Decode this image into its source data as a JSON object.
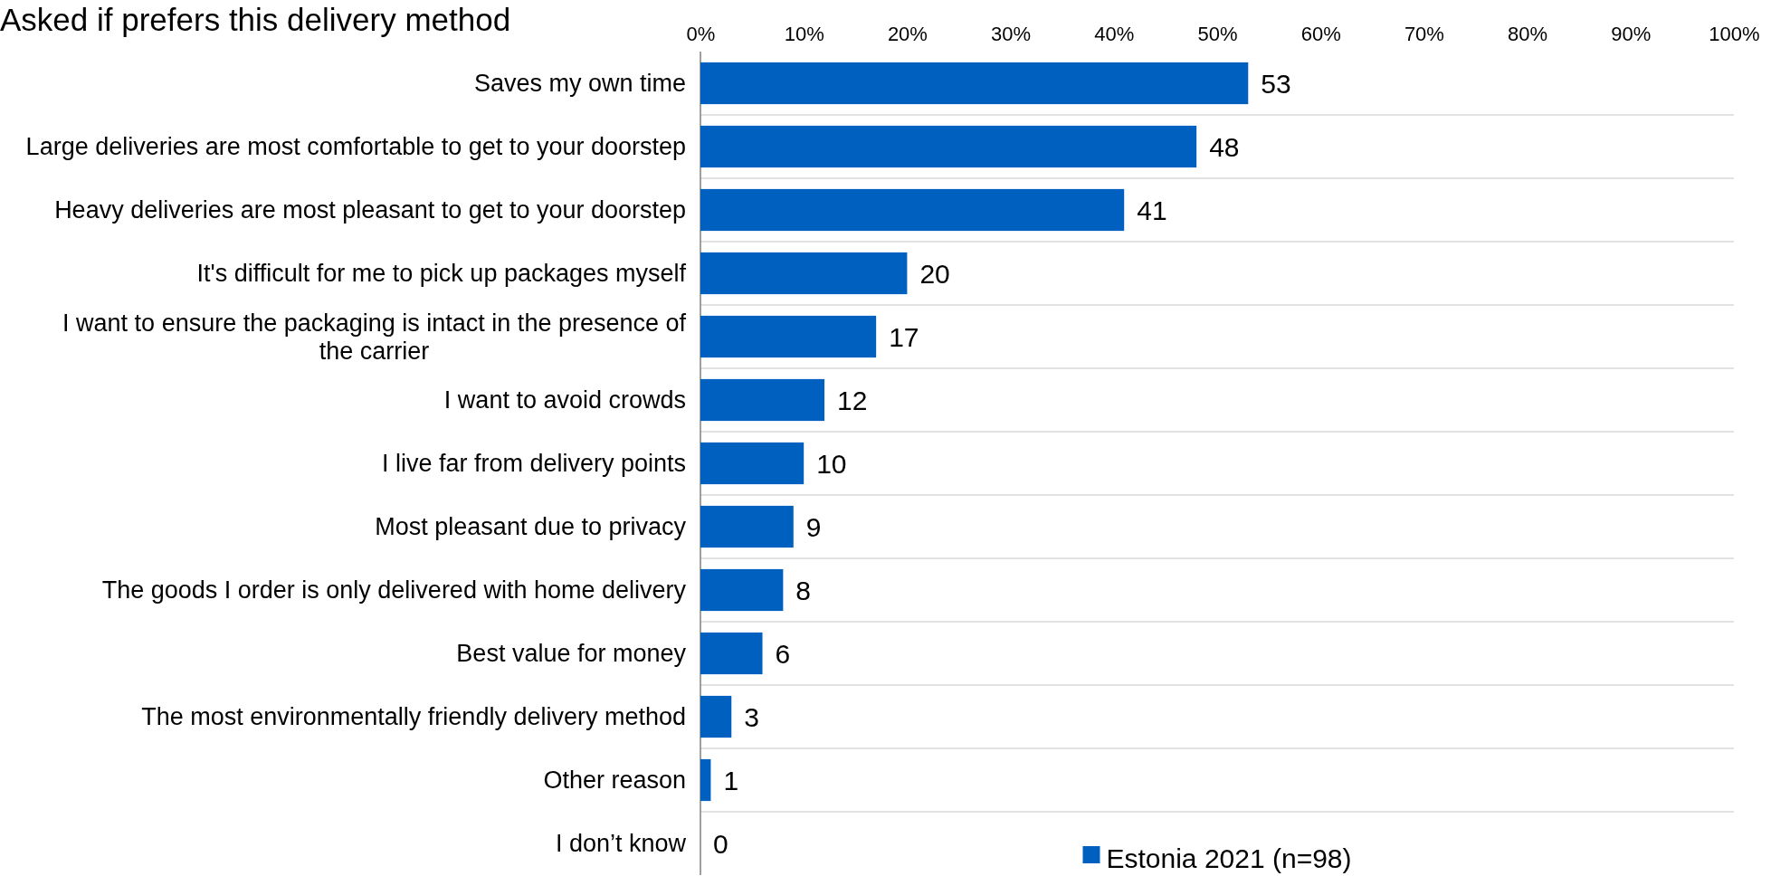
{
  "chart_data": {
    "type": "bar",
    "orientation": "horizontal",
    "title": "Asked if prefers this delivery method",
    "categories": [
      "Saves my own time",
      "Large deliveries are most comfortable to get to your doorstep",
      "Heavy deliveries are most pleasant to get to your doorstep",
      "It's difficult for me to pick up packages myself",
      "I want to ensure the packaging is intact in the presence of the carrier",
      "I want to avoid crowds",
      "I live far from delivery points",
      "Most pleasant due to privacy",
      "The goods I order is only delivered with home delivery",
      "Best value for money",
      "The most environmentally friendly delivery method",
      "Other reason",
      "I don’t know"
    ],
    "series": [
      {
        "name": "Estonia 2021 (n=98)",
        "color": "#0060c0",
        "values": [
          53,
          48,
          41,
          20,
          17,
          12,
          10,
          9,
          8,
          6,
          3,
          1,
          0
        ]
      }
    ],
    "xlim": [
      0,
      100
    ],
    "xticks": [
      {
        "value": 0,
        "label": "0%"
      },
      {
        "value": 10,
        "label": "10%"
      },
      {
        "value": 20,
        "label": "20%"
      },
      {
        "value": 30,
        "label": "30%"
      },
      {
        "value": 40,
        "label": "40%"
      },
      {
        "value": 50,
        "label": "50%"
      },
      {
        "value": 60,
        "label": "60%"
      },
      {
        "value": 70,
        "label": "70%"
      },
      {
        "value": 80,
        "label": "80%"
      },
      {
        "value": 90,
        "label": "90%"
      },
      {
        "value": 100,
        "label": "100%"
      }
    ],
    "data_labels": true,
    "grid": "y",
    "legend": "bottom"
  }
}
